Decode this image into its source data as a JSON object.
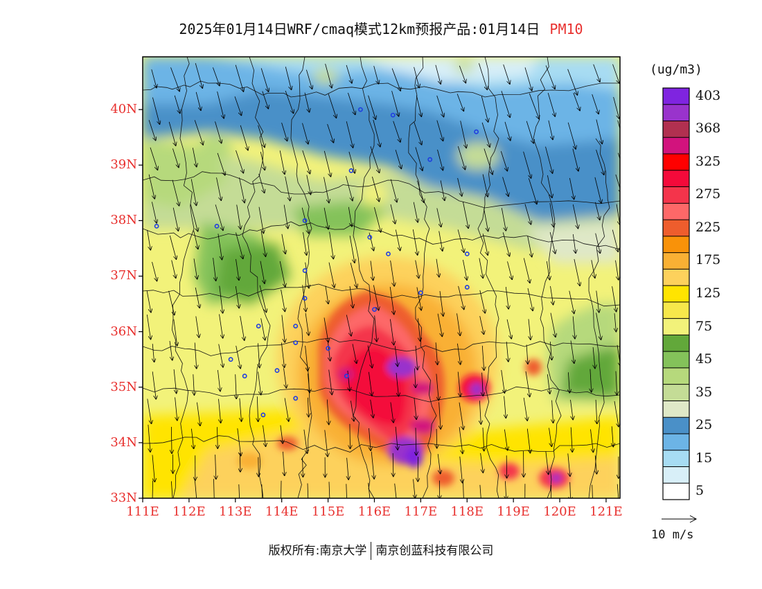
{
  "title": {
    "main": "2025年01月14日WRF/cmaq模式12km预报产品:01月14日",
    "variable": "PM10",
    "variable_color": "#e8302e"
  },
  "map": {
    "lat_labels": [
      "40N",
      "39N",
      "38N",
      "37N",
      "36N",
      "35N",
      "34N",
      "33N"
    ],
    "lon_labels": [
      "111E",
      "112E",
      "113E",
      "114E",
      "115E",
      "116E",
      "117E",
      "118E",
      "119E",
      "120E",
      "121E"
    ],
    "lat_values": [
      40,
      39,
      38,
      37,
      36,
      35,
      34,
      33
    ],
    "lon_values": [
      111,
      112,
      113,
      114,
      115,
      116,
      117,
      118,
      119,
      120,
      121
    ],
    "extent": {
      "lon_min": 111,
      "lon_max": 121.3,
      "lat_min": 33,
      "lat_max": 40.95
    },
    "wind_direction": "north-northwest to south-southeast",
    "city_markers": [
      [
        115.7,
        40.0
      ],
      [
        116.4,
        39.9
      ],
      [
        117.2,
        39.1
      ],
      [
        118.2,
        39.6
      ],
      [
        114.5,
        38.0
      ],
      [
        112.6,
        37.9
      ],
      [
        111.3,
        37.9
      ],
      [
        115.5,
        38.9
      ],
      [
        115.9,
        37.7
      ],
      [
        116.3,
        37.4
      ],
      [
        114.5,
        37.1
      ],
      [
        114.5,
        36.6
      ],
      [
        113.5,
        36.1
      ],
      [
        112.9,
        35.5
      ],
      [
        113.2,
        35.2
      ],
      [
        113.9,
        35.3
      ],
      [
        114.3,
        35.8
      ],
      [
        114.3,
        36.1
      ],
      [
        115.0,
        35.7
      ],
      [
        115.4,
        35.2
      ],
      [
        114.3,
        34.8
      ],
      [
        113.6,
        34.5
      ],
      [
        116.0,
        36.4
      ],
      [
        117.0,
        36.7
      ],
      [
        118.0,
        36.8
      ],
      [
        118.0,
        37.4
      ]
    ]
  },
  "colorbar": {
    "unit_label": "(ug/m3)",
    "colors": [
      "#ffffff",
      "#d8eff8",
      "#a7dcf3",
      "#6cb4e6",
      "#4a90c8",
      "#dfe8c7",
      "#c4dc96",
      "#b6d97c",
      "#84c25a",
      "#62a83a",
      "#f2f27a",
      "#f7e84b",
      "#ffe400",
      "#fdd15c",
      "#f9b034",
      "#f99209",
      "#ee5d2d",
      "#fd6868",
      "#f4344b",
      "#f40a3a",
      "#ff0000",
      "#d2137d",
      "#b13050",
      "#9933cc",
      "#7f24e0"
    ],
    "labels": [
      "5",
      "15",
      "25",
      "35",
      "45",
      "75",
      "125",
      "175",
      "225",
      "275",
      "325",
      "368",
      "403"
    ],
    "label_band_index": [
      1,
      3,
      5,
      7,
      9,
      11,
      13,
      15,
      17,
      19,
      21,
      23,
      25
    ]
  },
  "wind_reference": {
    "label": "10 m/s"
  },
  "footer": {
    "left": "版权所有:南京大学",
    "right": "南京创蓝科技有限公司"
  }
}
